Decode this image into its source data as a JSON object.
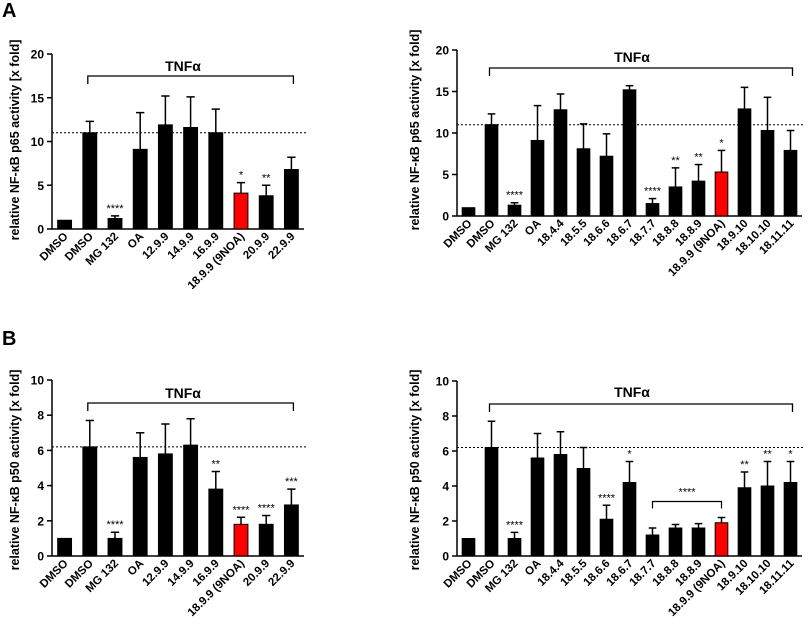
{
  "panels": [
    {
      "label": "A"
    },
    {
      "label": "B"
    }
  ],
  "chart_data": [
    {
      "type": "bar",
      "panel": "A",
      "ylabel": "relative NF-κB p65 activity [x fold]",
      "yticks": [
        "0",
        "5",
        "10",
        "15",
        "20"
      ],
      "ylim": [
        0,
        20
      ],
      "treatment_label": "TNFα",
      "treatment_span": [
        "DMSO",
        "22.9.9"
      ],
      "reference_line": 11,
      "categories": [
        "DMSO",
        "DMSO",
        "MG 132",
        "OA",
        "12.9.9",
        "14.9.9",
        "16.9.9",
        "18.9.9 (9NOA)",
        "20.9.9",
        "22.9.9"
      ],
      "values": [
        1.0,
        11.0,
        1.2,
        9.1,
        11.9,
        11.6,
        11.0,
        4.1,
        3.8,
        6.8
      ],
      "errors": [
        0,
        1.3,
        0.3,
        4.2,
        3.3,
        3.5,
        2.7,
        1.2,
        1.2,
        1.4
      ],
      "significance": [
        "",
        "",
        "****",
        "",
        "",
        "",
        "",
        "*",
        "**",
        ""
      ],
      "highlight": [
        false,
        false,
        false,
        false,
        false,
        false,
        false,
        true,
        false,
        false
      ],
      "colors": {
        "bar": "#000000",
        "highlight": "#ff0000"
      }
    },
    {
      "type": "bar",
      "panel": "A",
      "ylabel": "relative NF-κB p65 activity [x fold]",
      "yticks": [
        "0",
        "5",
        "10",
        "15",
        "20"
      ],
      "ylim": [
        0,
        20
      ],
      "treatment_label": "TNFα",
      "treatment_span": [
        "DMSO",
        "18.11.11"
      ],
      "reference_line": 11,
      "categories": [
        "DMSO",
        "DMSO",
        "MG 132",
        "OA",
        "18.4.4",
        "18.5.5",
        "18.6.6",
        "18.6.7",
        "18.7.7",
        "18.8.8",
        "18.8.9",
        "18.9.9 (9NOA)",
        "18.9.10",
        "18.10.10",
        "18.11.11"
      ],
      "values": [
        1.0,
        11.0,
        1.3,
        9.1,
        12.8,
        8.1,
        7.2,
        15.2,
        1.5,
        3.5,
        4.2,
        5.3,
        12.9,
        10.3,
        7.9
      ],
      "errors": [
        0,
        1.3,
        0.3,
        4.2,
        1.9,
        3.0,
        2.7,
        0.5,
        0.6,
        2.3,
        2.0,
        2.6,
        2.6,
        4.0,
        2.4
      ],
      "significance": [
        "",
        "",
        "****",
        "",
        "",
        "",
        "",
        "",
        "****",
        "**",
        "**",
        "*",
        "",
        "",
        ""
      ],
      "highlight": [
        false,
        false,
        false,
        false,
        false,
        false,
        false,
        false,
        false,
        false,
        false,
        true,
        false,
        false,
        false
      ],
      "colors": {
        "bar": "#000000",
        "highlight": "#ff0000"
      }
    },
    {
      "type": "bar",
      "panel": "B",
      "ylabel": "relative NF-κB p50 activity [x fold]",
      "yticks": [
        "0",
        "2",
        "4",
        "6",
        "8",
        "10"
      ],
      "ylim": [
        0,
        10
      ],
      "treatment_label": "TNFα",
      "treatment_span": [
        "DMSO",
        "22.9.9"
      ],
      "reference_line": 6.2,
      "categories": [
        "DMSO",
        "DMSO",
        "MG 132",
        "OA",
        "12.9.9",
        "14.9.9",
        "16.9.9",
        "18.9.9 (9NOA)",
        "20.9.9",
        "22.9.9"
      ],
      "values": [
        1.0,
        6.2,
        1.0,
        5.6,
        5.8,
        6.3,
        3.8,
        1.8,
        1.8,
        2.9
      ],
      "errors": [
        0,
        1.5,
        0.35,
        1.4,
        1.7,
        1.5,
        1.0,
        0.4,
        0.5,
        0.9
      ],
      "significance": [
        "",
        "",
        "****",
        "",
        "",
        "",
        "**",
        "****",
        "****",
        "***"
      ],
      "highlight": [
        false,
        false,
        false,
        false,
        false,
        false,
        false,
        true,
        false,
        false
      ],
      "colors": {
        "bar": "#000000",
        "highlight": "#ff0000"
      }
    },
    {
      "type": "bar",
      "panel": "B",
      "ylabel": "relative NF-κB p50 activity [x fold]",
      "yticks": [
        "0",
        "2",
        "4",
        "6",
        "8",
        "10"
      ],
      "ylim": [
        0,
        10
      ],
      "treatment_label": "TNFα",
      "treatment_span": [
        "DMSO",
        "18.11.11"
      ],
      "reference_line": 6.2,
      "categories": [
        "DMSO",
        "DMSO",
        "MG 132",
        "OA",
        "18.4.4",
        "18.5.5",
        "18.6.6",
        "18.6.7",
        "18.7.7",
        "18.8.8",
        "18.8.9",
        "18.9.9 (9NOA)",
        "18.9.10",
        "18.10.10",
        "18.11.11"
      ],
      "values": [
        1.0,
        6.2,
        1.0,
        5.6,
        5.8,
        5.0,
        2.1,
        4.2,
        1.2,
        1.6,
        1.6,
        1.9,
        3.9,
        4.0,
        4.2
      ],
      "errors": [
        0,
        1.5,
        0.35,
        1.4,
        1.3,
        1.2,
        0.8,
        1.2,
        0.4,
        0.2,
        0.25,
        0.3,
        0.9,
        1.4,
        1.2
      ],
      "significance": [
        "",
        "",
        "****",
        "",
        "",
        "",
        "****",
        "*",
        "",
        "",
        "",
        "",
        "**",
        "**",
        "*"
      ],
      "group_bracket": {
        "from": "18.7.7",
        "to": "18.9.9 (9NOA)",
        "label": "****"
      },
      "highlight": [
        false,
        false,
        false,
        false,
        false,
        false,
        false,
        false,
        false,
        false,
        false,
        true,
        false,
        false,
        false
      ],
      "colors": {
        "bar": "#000000",
        "highlight": "#ff0000"
      }
    }
  ]
}
